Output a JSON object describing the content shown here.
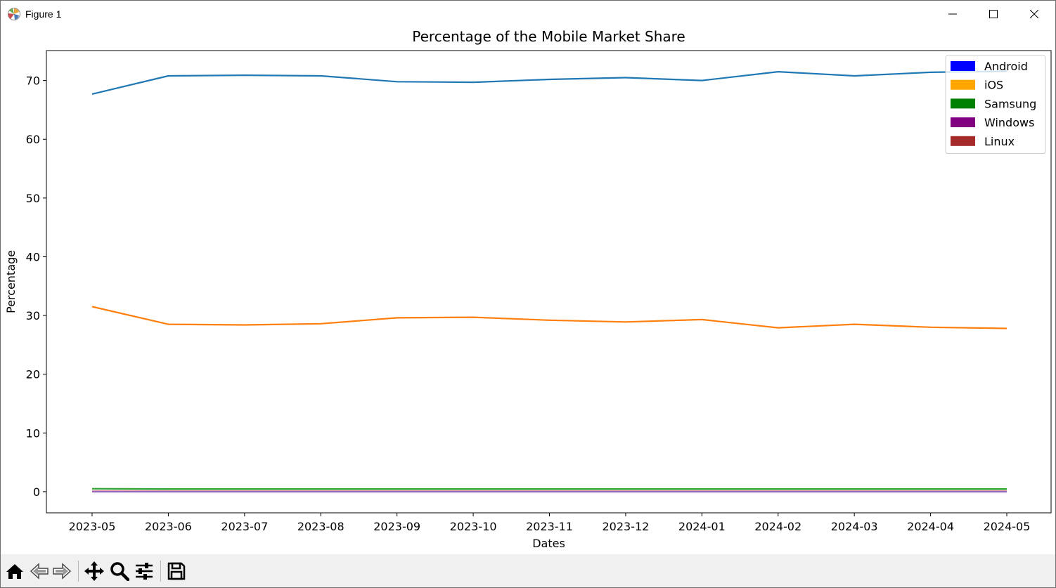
{
  "window": {
    "title": "Figure 1",
    "controls": [
      "minimize-icon",
      "maximize-icon",
      "close-icon"
    ]
  },
  "toolbar": {
    "buttons": [
      "home-icon",
      "back-arrow-icon",
      "forward-arrow-icon",
      "pan-icon",
      "zoom-icon",
      "configure-subplots-icon",
      "save-icon"
    ]
  },
  "chart_data": {
    "type": "line",
    "title": "Percentage of the Mobile Market Share",
    "xlabel": "Dates",
    "ylabel": "Percentage",
    "categories": [
      "2023-05",
      "2023-06",
      "2023-07",
      "2023-08",
      "2023-09",
      "2023-10",
      "2023-11",
      "2023-12",
      "2024-01",
      "2024-02",
      "2024-03",
      "2024-04",
      "2024-05"
    ],
    "ylim": [
      -3.6,
      75.1
    ],
    "yticks": [
      0,
      10,
      20,
      30,
      40,
      50,
      60,
      70
    ],
    "grid": false,
    "legend_position": "top-right",
    "legend": [
      {
        "label": "Android",
        "color": "#0000ff"
      },
      {
        "label": "iOS",
        "color": "#ffa500"
      },
      {
        "label": "Samsung",
        "color": "#008000"
      },
      {
        "label": "Windows",
        "color": "#800080"
      },
      {
        "label": "Linux",
        "color": "#a52a2a"
      }
    ],
    "series": [
      {
        "color": "#1f77b4",
        "values": [
          67.7,
          70.8,
          70.9,
          70.8,
          69.8,
          69.7,
          70.2,
          70.5,
          70.0,
          71.5,
          70.8,
          71.4,
          71.6
        ]
      },
      {
        "color": "#ff7f0e",
        "values": [
          31.5,
          28.5,
          28.4,
          28.6,
          29.6,
          29.7,
          29.2,
          28.9,
          29.3,
          27.9,
          28.5,
          28.0,
          27.8
        ]
      },
      {
        "color": "#2ca02c",
        "values": [
          0.5,
          0.45,
          0.45,
          0.45,
          0.45,
          0.45,
          0.45,
          0.45,
          0.45,
          0.45,
          0.45,
          0.45,
          0.45
        ]
      },
      {
        "color": "#d62728",
        "values": [
          0.05,
          0.05,
          0.05,
          0.05,
          0.05,
          0.05,
          0.05,
          0.05,
          0.05,
          0.05,
          0.05,
          0.05,
          0.05
        ]
      },
      {
        "color": "#9467bd",
        "values": [
          0.0,
          0.0,
          0.0,
          0.0,
          0.0,
          0.0,
          0.0,
          0.0,
          0.0,
          0.0,
          0.0,
          0.0,
          0.0
        ]
      }
    ]
  }
}
